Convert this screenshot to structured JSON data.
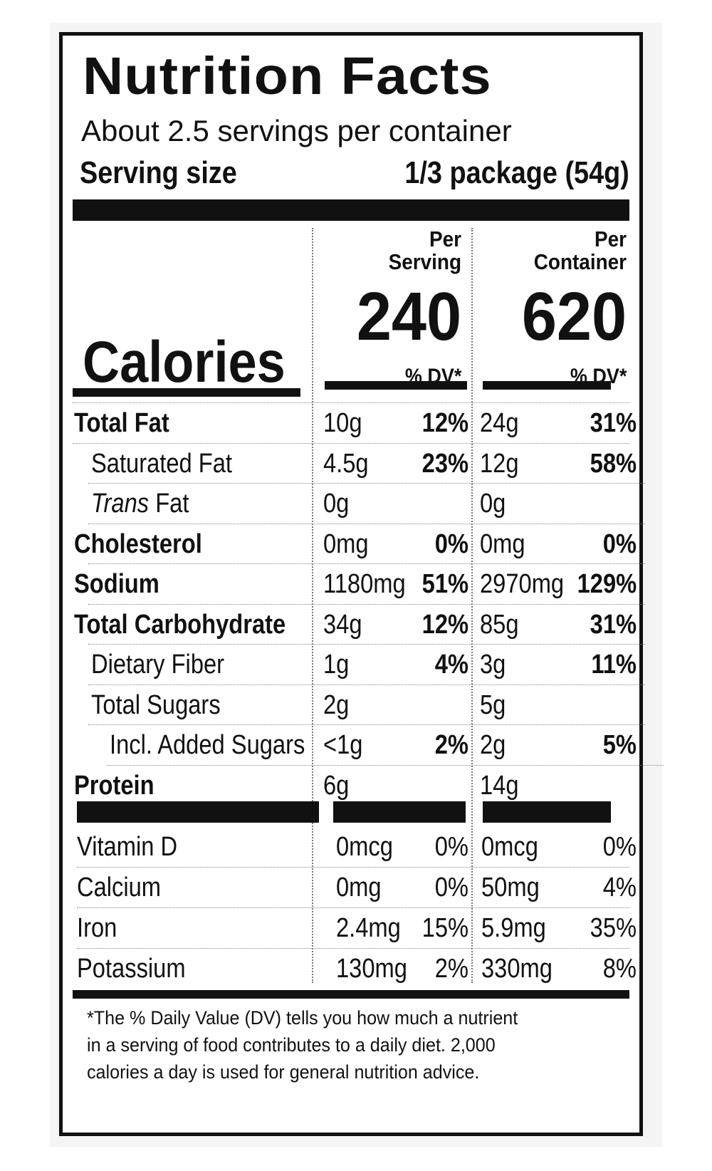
{
  "title": "Nutrition Facts",
  "servings_per_container": "About 2.5 servings per container",
  "serving_size_label": "Serving size",
  "serving_size_value": "1/3 package (54g)",
  "col_per_serving": [
    "Per",
    "Serving"
  ],
  "col_per_container": [
    "Per",
    "Container"
  ],
  "calories_label": "Calories",
  "calories_per_serving": "240",
  "calories_per_container": "620",
  "dv_header": "% DV*",
  "nutrients": [
    {
      "label": "Total Fat",
      "bold": true,
      "indent": 0,
      "serv_amt": "10g",
      "serv_dv": "12%",
      "cont_amt": "24g",
      "cont_dv": "31%"
    },
    {
      "label": "Saturated Fat",
      "bold": false,
      "indent": 1,
      "serv_amt": "4.5g",
      "serv_dv": "23%",
      "cont_amt": "12g",
      "cont_dv": "58%"
    },
    {
      "label_italic": "Trans",
      "label": " Fat",
      "bold": false,
      "indent": 1,
      "serv_amt": "0g",
      "serv_dv": "",
      "cont_amt": "0g",
      "cont_dv": ""
    },
    {
      "label": "Cholesterol",
      "bold": true,
      "indent": 0,
      "serv_amt": "0mg",
      "serv_dv": "0%",
      "cont_amt": "0mg",
      "cont_dv": "0%"
    },
    {
      "label": "Sodium",
      "bold": true,
      "indent": 0,
      "serv_amt": "1180mg",
      "serv_dv": "51%",
      "cont_amt": "2970mg",
      "cont_dv": "129%"
    },
    {
      "label": "Total Carbohydrate",
      "bold": true,
      "indent": 0,
      "serv_amt": "34g",
      "serv_dv": "12%",
      "cont_amt": "85g",
      "cont_dv": "31%"
    },
    {
      "label": "Dietary Fiber",
      "bold": false,
      "indent": 1,
      "serv_amt": "1g",
      "serv_dv": "4%",
      "cont_amt": "3g",
      "cont_dv": "11%"
    },
    {
      "label": "Total Sugars",
      "bold": false,
      "indent": 1,
      "serv_amt": "2g",
      "serv_dv": "",
      "cont_amt": "5g",
      "cont_dv": ""
    },
    {
      "label": "Incl. Added Sugars",
      "bold": false,
      "indent": 2,
      "serv_amt": "<1g",
      "serv_dv": "2%",
      "cont_amt": "2g",
      "cont_dv": "5%"
    },
    {
      "label": "Protein",
      "bold": true,
      "indent": 0,
      "serv_amt": "6g",
      "serv_dv": "",
      "cont_amt": "14g",
      "cont_dv": ""
    }
  ],
  "vitamins": [
    {
      "label": "Vitamin D",
      "serv_amt": "0mcg",
      "serv_dv": "0%",
      "cont_amt": "0mcg",
      "cont_dv": "0%"
    },
    {
      "label": "Calcium",
      "serv_amt": "0mg",
      "serv_dv": "0%",
      "cont_amt": "50mg",
      "cont_dv": "4%"
    },
    {
      "label": "Iron",
      "serv_amt": "2.4mg",
      "serv_dv": "15%",
      "cont_amt": "5.9mg",
      "cont_dv": "35%"
    },
    {
      "label": "Potassium",
      "serv_amt": "130mg",
      "serv_dv": "2%",
      "cont_amt": "330mg",
      "cont_dv": "8%"
    }
  ],
  "footnote": [
    "*The % Daily Value (DV) tells you how much a nutrient",
    "in a serving of food contributes to a daily diet. 2,000",
    "calories a day is used for general nutrition advice."
  ]
}
